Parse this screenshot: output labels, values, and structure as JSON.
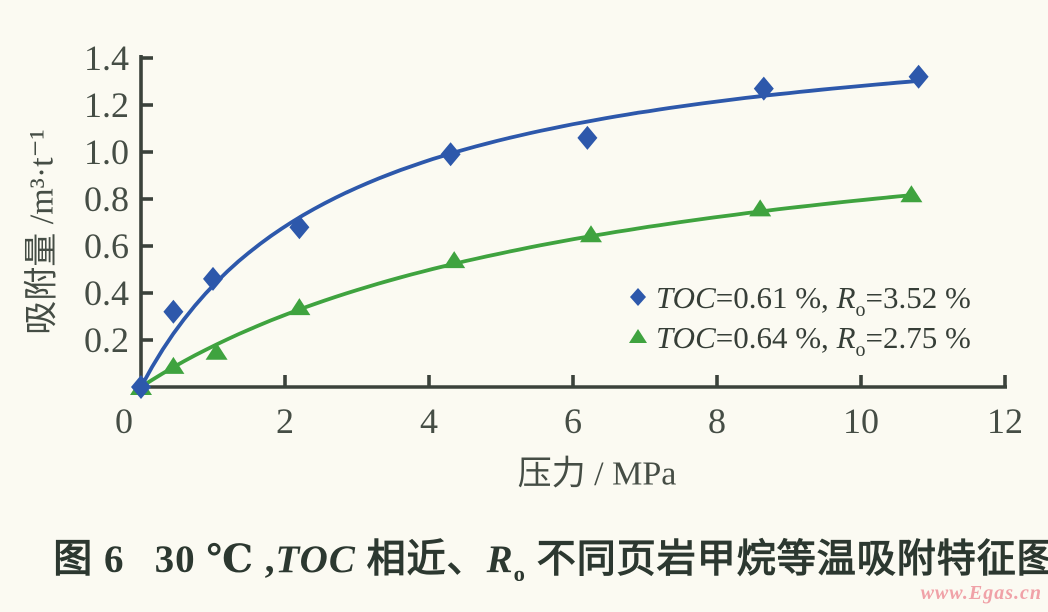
{
  "figure": {
    "caption": {
      "fig": "图 6",
      "part1": "30 ℃ ,",
      "toc": "TOC",
      "part2": " 相近、",
      "r": "R",
      "r_sub": "o",
      "part3": " 不同页岩甲烷等温吸附特征图"
    },
    "watermark": "www.Egas.cn"
  },
  "chart_data": {
    "type": "scatter",
    "title": "",
    "xlabel": "压力 / MPa",
    "ylabel": "吸附量 /m³·t⁻¹",
    "xlim": [
      0,
      12
    ],
    "ylim": [
      0,
      1.4
    ],
    "x_ticks": [
      0,
      2,
      4,
      6,
      8,
      10,
      12
    ],
    "y_ticks": [
      0.2,
      0.4,
      0.6,
      0.8,
      1.0,
      1.2,
      1.4
    ],
    "grid": false,
    "legend_position": "inside-right",
    "background_color": "#fbfaf2",
    "axis_color": "#3b423b",
    "tick_label_color": "#454d45",
    "legend_text_color": "#363e37",
    "series": [
      {
        "name": "TOC=0.61 %, Ro=3.52 %",
        "marker": "diamond",
        "color": "#2d58ab",
        "x": [
          0,
          0.45,
          1.0,
          2.2,
          4.3,
          6.2,
          8.65,
          10.8
        ],
        "y": [
          0,
          0.32,
          0.46,
          0.68,
          0.99,
          1.06,
          1.27,
          1.32
        ],
        "fit_langmuir": {
          "vl": 1.64,
          "pl": 2.8
        },
        "legend_parts": [
          {
            "style": "italic",
            "text": "TOC"
          },
          {
            "style": "normal",
            "text": "=0.61 %, "
          },
          {
            "style": "italic",
            "text": "R"
          },
          {
            "style": "sub",
            "text": "o"
          },
          {
            "style": "normal",
            "text": "=3.52 %"
          }
        ]
      },
      {
        "name": "TOC=0.64 %, Ro=2.75 %",
        "marker": "triangle",
        "color": "#3fa33f",
        "x": [
          0,
          0.45,
          1.05,
          2.2,
          4.35,
          6.25,
          8.6,
          10.7
        ],
        "y": [
          0,
          0.09,
          0.15,
          0.34,
          0.54,
          0.65,
          0.76,
          0.82
        ],
        "fit_langmuir": {
          "vl": 1.32,
          "pl": 6.6
        },
        "legend_parts": [
          {
            "style": "italic",
            "text": "TOC"
          },
          {
            "style": "normal",
            "text": "=0.64 %, "
          },
          {
            "style": "italic",
            "text": "R"
          },
          {
            "style": "sub",
            "text": "o"
          },
          {
            "style": "normal",
            "text": "=2.75 %"
          }
        ]
      }
    ]
  }
}
